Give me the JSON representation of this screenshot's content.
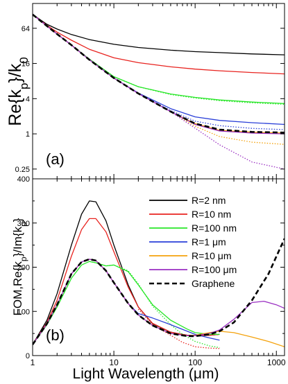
{
  "figure": {
    "xlabel": "Light Wavelength (μm)",
    "x_ticks": [
      1,
      10,
      100,
      1000
    ],
    "x_tick_labels": [
      "1",
      "10",
      "100",
      "1000"
    ]
  },
  "legend": [
    {
      "label": "R=2 nm",
      "color": "#000000",
      "dash": "solid"
    },
    {
      "label": "R=10 nm",
      "color": "#e8231f",
      "dash": "solid"
    },
    {
      "label": "R=100 nm",
      "color": "#27e627",
      "dash": "solid"
    },
    {
      "label": "R=1 μm",
      "color": "#2a3fd8",
      "dash": "solid"
    },
    {
      "label": "R=10 μm",
      "color": "#f4a20c",
      "dash": "solid"
    },
    {
      "label": "R=100 μm",
      "color": "#9a2fc2",
      "dash": "solid"
    },
    {
      "label": "Graphene",
      "color": "#000000",
      "dash": "dashed"
    }
  ],
  "chart_data": [
    {
      "type": "line",
      "panel_label": "(a)",
      "ylabel": "Re{kp}/k0",
      "xscale": "log",
      "yscale": "log",
      "xlim": [
        1,
        1260
      ],
      "ylim": [
        0.17,
        170
      ],
      "y_ticks": [
        0.25,
        1,
        4,
        16,
        64
      ],
      "y_tick_labels": [
        "0.25",
        "1",
        "4",
        "16",
        "64"
      ],
      "series": [
        {
          "name": "R=2 nm",
          "color": "#000000",
          "style": "solid",
          "x": [
            1,
            1.5,
            2,
            3,
            5,
            10,
            20,
            50,
            100,
            200,
            500,
            1260
          ],
          "y": [
            110,
            75,
            62,
            50,
            41,
            34,
            30,
            27,
            25.5,
            24.5,
            23.3,
            22.5
          ]
        },
        {
          "name": "R=10 nm",
          "color": "#e8231f",
          "style": "solid",
          "x": [
            1,
            1.5,
            2,
            3,
            5,
            10,
            20,
            50,
            100,
            200,
            500,
            1260
          ],
          "y": [
            110,
            72,
            55,
            40,
            28,
            20,
            16.5,
            14,
            12.8,
            12,
            11.2,
            10.6
          ]
        },
        {
          "name": "R=100 nm",
          "color": "#27e627",
          "style": "solid",
          "x": [
            1,
            1.5,
            2,
            3,
            5,
            10,
            20,
            50,
            100,
            200,
            500,
            1260
          ],
          "y": [
            110,
            70,
            51,
            33,
            19,
            9.5,
            6.4,
            4.8,
            4.2,
            3.8,
            3.5,
            3.3
          ]
        },
        {
          "name": "R=100 nm (dotted)",
          "color": "#27e627",
          "style": "dotted",
          "x": [
            1,
            1.5,
            2,
            3,
            5,
            10,
            20,
            50,
            100,
            200,
            500,
            1260
          ],
          "y": [
            110,
            70,
            51,
            33,
            19,
            9.5,
            6.4,
            4.7,
            4.1,
            3.7,
            3.4,
            3.2
          ]
        },
        {
          "name": "R=1 μm",
          "color": "#2a3fd8",
          "style": "solid",
          "x": [
            1,
            1.5,
            2,
            3,
            5,
            10,
            20,
            50,
            100,
            200,
            500,
            1260
          ],
          "y": [
            110,
            70,
            51,
            33,
            18.5,
            9,
            5,
            2.7,
            1.95,
            1.7,
            1.55,
            1.45
          ]
        },
        {
          "name": "R=1 μm (dotted)",
          "color": "#2a3fd8",
          "style": "dotted",
          "x": [
            1,
            1.5,
            2,
            3,
            5,
            10,
            20,
            50,
            100,
            200,
            500,
            1260
          ],
          "y": [
            110,
            70,
            51,
            33,
            18.5,
            9,
            4.9,
            2.5,
            1.65,
            1.38,
            1.24,
            1.18
          ]
        },
        {
          "name": "R=10 μm",
          "color": "#f4a20c",
          "style": "solid",
          "x": [
            1,
            1.5,
            2,
            3,
            5,
            10,
            20,
            50,
            100,
            200,
            500,
            1260
          ],
          "y": [
            110,
            70,
            51,
            33,
            18.5,
            9,
            4.9,
            2.4,
            1.5,
            1.15,
            1.07,
            1.03
          ]
        },
        {
          "name": "R=10 μm (dotted)",
          "color": "#f4a20c",
          "style": "dotted",
          "x": [
            1,
            1.5,
            2,
            3,
            5,
            10,
            20,
            50,
            100,
            200,
            500,
            1260
          ],
          "y": [
            110,
            70,
            51,
            33,
            18.5,
            9,
            4.9,
            2.4,
            1.35,
            0.9,
            0.72,
            0.66
          ]
        },
        {
          "name": "R=100 μm",
          "color": "#9a2fc2",
          "style": "solid",
          "x": [
            1,
            1.5,
            2,
            3,
            5,
            10,
            20,
            50,
            100,
            200,
            500,
            1260
          ],
          "y": [
            110,
            70,
            51,
            33,
            18.5,
            9,
            4.9,
            2.4,
            1.45,
            1.12,
            1.03,
            1.0
          ]
        },
        {
          "name": "R=100 μm (dotted)",
          "color": "#9a2fc2",
          "style": "dotted",
          "x": [
            1,
            1.5,
            2,
            3,
            5,
            10,
            20,
            50,
            100,
            200,
            500,
            1260
          ],
          "y": [
            110,
            70,
            51,
            33,
            18.5,
            9,
            4.9,
            2.4,
            1.25,
            0.65,
            0.33,
            0.25
          ]
        },
        {
          "name": "Graphene",
          "color": "#000000",
          "style": "dashed",
          "x": [
            1,
            1.5,
            2,
            3,
            5,
            10,
            20,
            50,
            100,
            200,
            500,
            1260
          ],
          "y": [
            110,
            70,
            51,
            33,
            18.5,
            9,
            4.9,
            2.4,
            1.5,
            1.18,
            1.08,
            1.05
          ]
        }
      ]
    },
    {
      "type": "line",
      "panel_label": "(b)",
      "ylabel": "FOM,Re{kp}/Im{kp}",
      "xscale": "log",
      "yscale": "linear",
      "xlim": [
        1,
        1260
      ],
      "ylim": [
        0,
        400
      ],
      "y_ticks": [
        0,
        100,
        200,
        300,
        400
      ],
      "y_tick_labels": [
        "0",
        "100",
        "200",
        "300",
        "400"
      ],
      "series": [
        {
          "name": "R=2 nm",
          "color": "#000000",
          "style": "solid",
          "x": [
            1,
            1.5,
            2,
            3,
            4,
            5,
            6,
            8,
            10,
            15,
            20,
            30,
            50,
            80,
            100,
            150,
            200
          ],
          "y": [
            25,
            80,
            140,
            250,
            320,
            350,
            348,
            305,
            250,
            160,
            110,
            72,
            53,
            46,
            45,
            46,
            48
          ]
        },
        {
          "name": "R=10 nm",
          "color": "#e8231f",
          "style": "solid",
          "x": [
            1,
            1.5,
            2,
            3,
            4,
            5,
            6,
            8,
            10,
            15,
            20,
            30,
            50,
            80,
            100,
            150,
            200
          ],
          "y": [
            25,
            75,
            125,
            225,
            285,
            310,
            310,
            280,
            235,
            155,
            110,
            73,
            53,
            46,
            45,
            46,
            48
          ]
        },
        {
          "name": "R=10 nm (dotted)",
          "color": "#e8231f",
          "style": "dotted",
          "x": [
            20,
            30,
            50,
            70,
            100,
            150,
            200
          ],
          "y": [
            105,
            70,
            46,
            30,
            20,
            17,
            16
          ]
        },
        {
          "name": "R=100 nm",
          "color": "#27e627",
          "style": "solid",
          "x": [
            1,
            1.5,
            2,
            3,
            4,
            5,
            6,
            8,
            10,
            15,
            20,
            30,
            50,
            80,
            100,
            150,
            200
          ],
          "y": [
            25,
            70,
            110,
            175,
            205,
            213,
            210,
            203,
            205,
            190,
            160,
            115,
            80,
            60,
            52,
            48,
            48
          ]
        },
        {
          "name": "R=100 nm (dotted)",
          "color": "#27e627",
          "style": "dotted",
          "x": [
            5,
            6,
            8,
            10,
            15,
            20,
            30,
            50,
            70,
            100,
            150,
            200
          ],
          "y": [
            213,
            210,
            203,
            205,
            192,
            162,
            112,
            70,
            48,
            32,
            22,
            18
          ]
        },
        {
          "name": "R=1 μm",
          "color": "#2a3fd8",
          "style": "solid",
          "x": [
            1,
            1.5,
            2,
            3,
            4,
            5,
            6,
            8,
            10,
            15,
            20,
            30,
            50,
            80,
            100,
            150,
            200
          ],
          "y": [
            25,
            72,
            115,
            185,
            212,
            218,
            215,
            192,
            165,
            118,
            95,
            85,
            70,
            55,
            48,
            40,
            35
          ]
        },
        {
          "name": "R=10 μm",
          "color": "#f4a20c",
          "style": "solid",
          "x": [
            1,
            1.5,
            2,
            3,
            4,
            5,
            6,
            8,
            10,
            15,
            20,
            30,
            50,
            80,
            100,
            150,
            200,
            300,
            500,
            800,
            1260
          ],
          "y": [
            25,
            72,
            115,
            185,
            212,
            218,
            215,
            192,
            165,
            118,
            92,
            68,
            50,
            45,
            46,
            52,
            55,
            52,
            42,
            32,
            20
          ]
        },
        {
          "name": "R=100 μm",
          "color": "#9a2fc2",
          "style": "solid",
          "x": [
            1,
            1.5,
            2,
            3,
            4,
            5,
            6,
            8,
            10,
            15,
            20,
            30,
            50,
            80,
            100,
            150,
            200,
            300,
            500,
            700,
            1000,
            1260
          ],
          "y": [
            25,
            72,
            115,
            185,
            212,
            218,
            215,
            192,
            165,
            118,
            92,
            68,
            50,
            45,
            45,
            50,
            58,
            82,
            120,
            123,
            115,
            107
          ]
        },
        {
          "name": "Graphene",
          "color": "#000000",
          "style": "dashed",
          "x": [
            1,
            1.5,
            2,
            3,
            4,
            5,
            6,
            8,
            10,
            15,
            20,
            30,
            50,
            80,
            100,
            150,
            200,
            300,
            500,
            800,
            1260
          ],
          "y": [
            25,
            72,
            115,
            185,
            212,
            218,
            215,
            192,
            165,
            118,
            92,
            68,
            50,
            44,
            44,
            48,
            55,
            75,
            125,
            185,
            265
          ]
        }
      ]
    }
  ]
}
